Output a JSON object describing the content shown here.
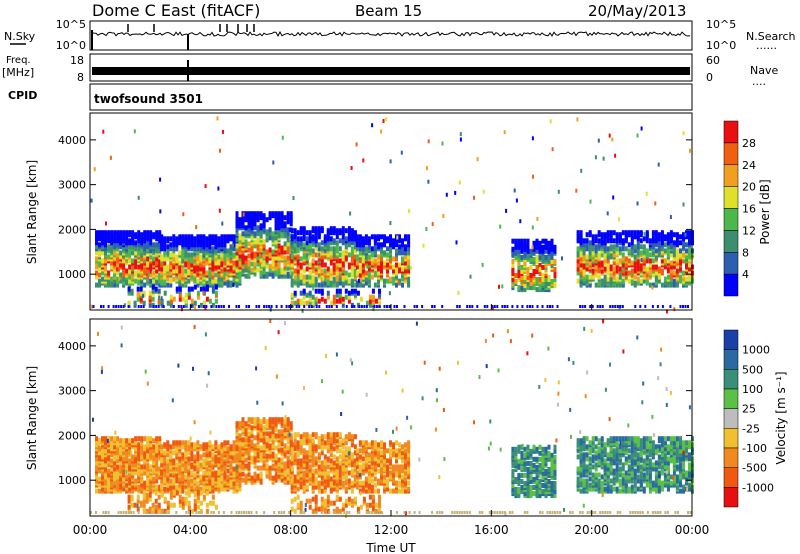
{
  "header": {
    "station": "Dome C East (fitACF)",
    "beam": "Beam 15",
    "date": "20/May/2013"
  },
  "side_labels": {
    "nsky": "N.Sky",
    "freq": "Freq.",
    "mhz": "[MHz]",
    "cpid": "CPID",
    "nsearch": "N.Search",
    "nave": "Nave",
    "dots": "......",
    "dots_short": "...."
  },
  "cpid_text": "twofsound 3501",
  "chart_data": [
    {
      "type": "line",
      "panel": "noise",
      "left_ticks": [
        "10^5",
        "10^0"
      ],
      "right_ticks": [
        "10^5",
        "10^0"
      ]
    },
    {
      "type": "line",
      "panel": "frequency",
      "left_ticks": [
        "18",
        "8"
      ],
      "right_ticks": [
        "60",
        "0"
      ]
    },
    {
      "type": "heatmap",
      "panel": "power",
      "ylabel": "Slant Range [km]",
      "yticks": [
        "1000",
        "2000",
        "3000",
        "4000"
      ],
      "ylim": [
        200,
        4600
      ],
      "colorbar_label": "Power [dB]",
      "colorbar_ticks": [
        "4",
        "8",
        "12",
        "16",
        "20",
        "24",
        "28"
      ],
      "colors": [
        "#0000ff",
        "#2d5fb0",
        "#3c8f6e",
        "#4cb84c",
        "#dfe02a",
        "#f0a020",
        "#f06010",
        "#e81010"
      ]
    },
    {
      "type": "heatmap",
      "panel": "velocity",
      "ylabel": "Slant Range [km]",
      "yticks": [
        "1000",
        "2000",
        "3000",
        "4000"
      ],
      "ylim": [
        200,
        4600
      ],
      "colorbar_label": "Velocity [m s⁻¹]",
      "colorbar_ticks": [
        "1000",
        "500",
        "100",
        "25",
        "-25",
        "-100",
        "-500",
        "-1000"
      ],
      "colors": [
        "#1a3fa8",
        "#2a6aa0",
        "#3a8f78",
        "#5cc048",
        "#bdbdbd",
        "#f0c030",
        "#f08a20",
        "#f05a10",
        "#e61010"
      ]
    }
  ],
  "xaxis": {
    "ticks": [
      "00:00",
      "04:00",
      "08:00",
      "12:00",
      "16:00",
      "20:00",
      "00:00"
    ],
    "label": "Time UT"
  }
}
